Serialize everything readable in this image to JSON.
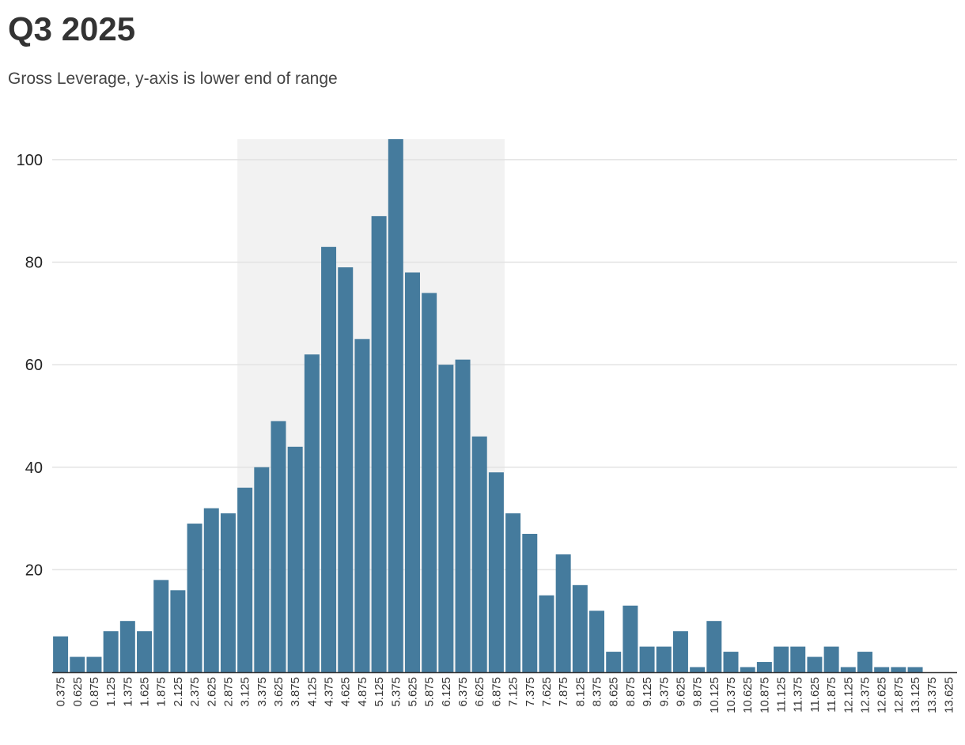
{
  "header": {
    "title": "Q3 2025",
    "subtitle": "Gross Leverage, y-axis is lower end of range"
  },
  "colors": {
    "bar": "#457b9d",
    "band": "#f2f2f2",
    "grid": "#e3e3e3",
    "axis": "#333333"
  },
  "chart_data": {
    "type": "bar",
    "title": "Q3 2025",
    "subtitle": "Gross Leverage, y-axis is lower end of range",
    "xlabel": "",
    "ylabel": "",
    "ylim": [
      0,
      104
    ],
    "yticks": [
      20,
      40,
      60,
      80,
      100
    ],
    "grid": true,
    "highlight_band": {
      "from": "3.125",
      "to": "6.875"
    },
    "categories": [
      "0.375",
      "0.625",
      "0.875",
      "1.125",
      "1.375",
      "1.625",
      "1.875",
      "2.125",
      "2.375",
      "2.625",
      "2.875",
      "3.125",
      "3.375",
      "3.625",
      "3.875",
      "4.125",
      "4.375",
      "4.625",
      "4.875",
      "5.125",
      "5.375",
      "5.625",
      "5.875",
      "6.125",
      "6.375",
      "6.625",
      "6.875",
      "7.125",
      "7.375",
      "7.625",
      "7.875",
      "8.125",
      "8.375",
      "8.625",
      "8.875",
      "9.125",
      "9.375",
      "9.625",
      "9.875",
      "10.125",
      "10.375",
      "10.625",
      "10.875",
      "11.125",
      "11.375",
      "11.625",
      "11.875",
      "12.125",
      "12.375",
      "12.625",
      "12.875",
      "13.125",
      "13.375",
      "13.625"
    ],
    "values": [
      7,
      3,
      3,
      8,
      10,
      8,
      18,
      16,
      29,
      32,
      31,
      36,
      40,
      49,
      44,
      62,
      83,
      79,
      65,
      89,
      104,
      78,
      74,
      60,
      61,
      46,
      39,
      31,
      27,
      15,
      23,
      17,
      12,
      4,
      13,
      5,
      5,
      8,
      1,
      10,
      4,
      1,
      2,
      5,
      5,
      3,
      5,
      1,
      4,
      1,
      1,
      1,
      0,
      0
    ]
  }
}
